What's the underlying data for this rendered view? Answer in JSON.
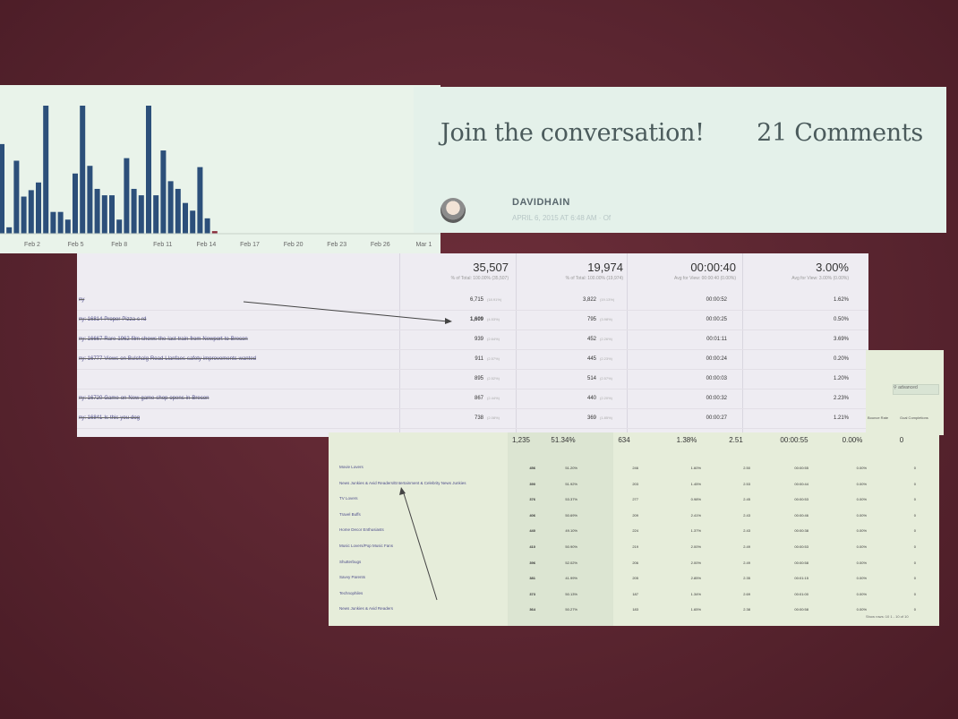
{
  "chart_data": {
    "type": "bar",
    "x_tick_labels": [
      "Feb 2",
      "Feb 5",
      "Feb 8",
      "Feb 11",
      "Feb 14",
      "Feb 17",
      "Feb 20",
      "Feb 23",
      "Feb 26",
      "Mar 1"
    ],
    "values": [
      70,
      5,
      57,
      29,
      34,
      40,
      100,
      17,
      17,
      11,
      47,
      100,
      53,
      35,
      30,
      30,
      11,
      59,
      35,
      30,
      100,
      30,
      65,
      41,
      35,
      24,
      18,
      52,
      12,
      2
    ],
    "color": "#2c4f7a"
  },
  "comments": {
    "heading": "Join the conversation!",
    "count": "21 Comments",
    "author": "DAVIDHAIN",
    "timestamp": "APRIL 6, 2015 AT 6:48 AM · Of"
  },
  "table1": {
    "totals": [
      {
        "value": "35,507",
        "sub": "% of Total: 100.00% (35,507)"
      },
      {
        "value": "19,974",
        "sub": "% of Total: 100.00% (19,974)"
      },
      {
        "value": "00:00:40",
        "sub": "Avg for View: 00:00:40 (0.00%)"
      },
      {
        "value": "3.00%",
        "sub": "Avg for View: 3.00% (0.00%)"
      }
    ],
    "rows": [
      {
        "label": "ny",
        "v1": "6,715",
        "p1": "(18.91%)",
        "v2": "3,822",
        "p2": "(19.13%)",
        "v3": "00:00:52",
        "v4": "1.62%"
      },
      {
        "label": "ny: 16814-Proper-Pizza-c-rd",
        "v1": "1,609",
        "p1": "(4.53%)",
        "v2": "795",
        "p2": "(3.98%)",
        "v3": "00:00:25",
        "v4": "0.50%"
      },
      {
        "label": "ny: 16667-Rare-1962-film-shows-the-last-train-from-Newport-to-Brecon",
        "v1": "939",
        "p1": "(2.64%)",
        "v2": "452",
        "p2": "(2.26%)",
        "v3": "00:01:11",
        "v4": "3.69%"
      },
      {
        "label": "ny: 16777-Views-on-Bulchalg-Road-Llanfaes-safety-improvements-wanted",
        "v1": "911",
        "p1": "(2.57%)",
        "v2": "445",
        "p2": "(2.23%)",
        "v3": "00:00:24",
        "v4": "0.20%"
      },
      {
        "label": "",
        "v1": "895",
        "p1": "(2.52%)",
        "v2": "514",
        "p2": "(2.57%)",
        "v3": "00:00:03",
        "v4": "1.20%"
      },
      {
        "label": "ny: 16720-Game-on-New-game-shop-opens-in-Brecon",
        "v1": "867",
        "p1": "(2.44%)",
        "v2": "440",
        "p2": "(2.20%)",
        "v3": "00:00:32",
        "v4": "2.23%"
      },
      {
        "label": "ny: 16841-Is-this-you-dog",
        "v1": "738",
        "p1": "(2.08%)",
        "v2": "369",
        "p2": "(1.85%)",
        "v3": "00:00:27",
        "v4": "1.21%"
      }
    ]
  },
  "table2": {
    "search_label": "advanced",
    "right_headers": [
      "Bounce Rate",
      "Goal Completions"
    ],
    "totals": [
      "1,235",
      "51.34%",
      "634",
      "1.38%",
      "2.51",
      "00:00:55",
      "0.00%",
      "0"
    ],
    "rows": [
      {
        "label": "Movie Lovers",
        "c": [
          "456",
          "51.20%",
          "246",
          "1.60%",
          "2.50",
          "00:00:55",
          "0.00%",
          "0"
        ]
      },
      {
        "label": "News Junkies & Avid Readers/Entertainment & Celebrity News Junkies",
        "c": [
          "390",
          "51.92%",
          "203",
          "1.45%",
          "2.53",
          "00:00:44",
          "0.00%",
          "0"
        ]
      },
      {
        "label": "TV Lovers",
        "c": [
          "376",
          "53.37%",
          "277",
          "0.98%",
          "2.45",
          "00:00:53",
          "0.00%",
          "0"
        ]
      },
      {
        "label": "Travel Buffs",
        "c": [
          "406",
          "50.69%",
          "209",
          "2.41%",
          "2.43",
          "00:00:46",
          "0.00%",
          "0"
        ]
      },
      {
        "label": "Home Decor Enthusiasts",
        "c": [
          "440",
          "49.10%",
          "224",
          "1.37%",
          "2.43",
          "00:00:38",
          "0.00%",
          "0"
        ]
      },
      {
        "label": "Music Lovers/Pop Music Fans",
        "c": [
          "410",
          "50.90%",
          "219",
          "2.00%",
          "2.49",
          "00:00:53",
          "0.00%",
          "0"
        ]
      },
      {
        "label": "Shutterbugs",
        "c": [
          "396",
          "52.02%",
          "206",
          "2.00%",
          "2.49",
          "00:00:58",
          "0.00%",
          "0"
        ]
      },
      {
        "label": "Savvy Parents",
        "c": [
          "381",
          "41.99%",
          "205",
          "2.85%",
          "2.35",
          "00:01:15",
          "0.00%",
          "0"
        ]
      },
      {
        "label": "Technophiles",
        "c": [
          "373",
          "50.13%",
          "187",
          "1.34%",
          "2.69",
          "00:01:00",
          "0.00%",
          "0"
        ]
      },
      {
        "label": "News Junkies & Avid Readers",
        "c": [
          "364",
          "50.27%",
          "183",
          "1.65%",
          "2.38",
          "00:00:58",
          "0.00%",
          "0"
        ]
      }
    ],
    "footer": "Show rows: 10   1 - 10 of 10"
  }
}
